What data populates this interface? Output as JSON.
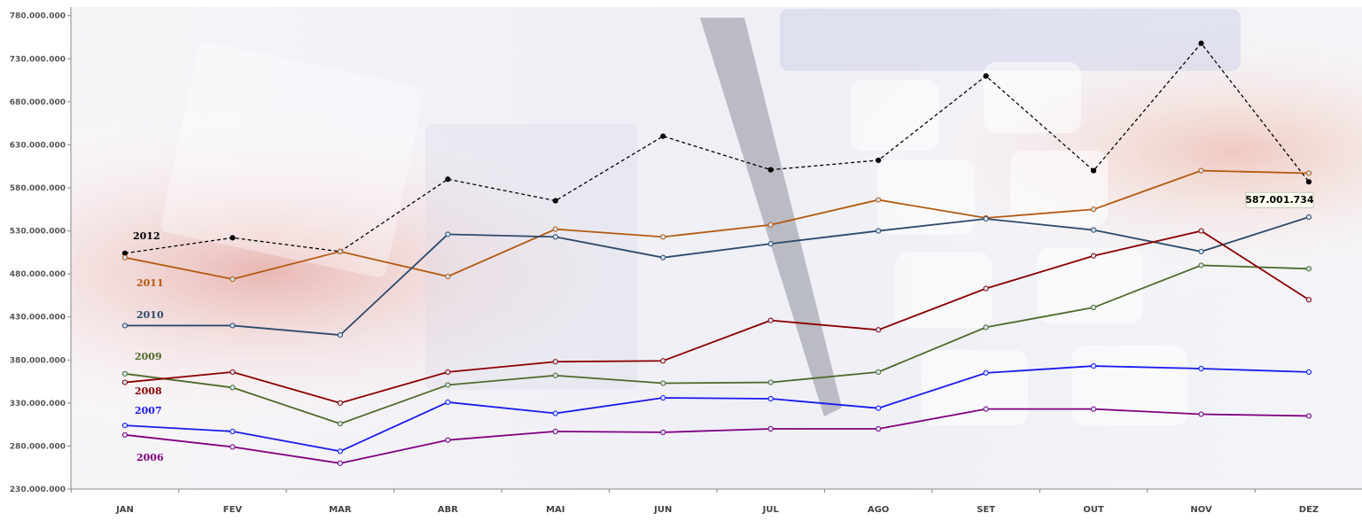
{
  "chart_data": {
    "type": "line",
    "title": "",
    "xlabel": "",
    "ylabel": "",
    "categories": [
      "JAN",
      "FEV",
      "MAR",
      "ABR",
      "MAI",
      "JUN",
      "JUL",
      "AGO",
      "SET",
      "OUT",
      "NOV",
      "DEZ"
    ],
    "yticks": [
      "230.000.000",
      "280.000.000",
      "330.000.000",
      "380.000.000",
      "430.000.000",
      "480.000.000",
      "530.000.000",
      "580.000.000",
      "630.000.000",
      "680.000.000",
      "730.000.000",
      "780.000.000"
    ],
    "ylim": [
      230000000,
      790000000
    ],
    "grid": false,
    "series": [
      {
        "name": "2012",
        "color": "#000000",
        "dashed": true,
        "values": [
          504000000,
          522000000,
          506000000,
          590000000,
          565000000,
          640000000,
          601000000,
          612000000,
          710000000,
          600000000,
          748000000,
          587001734
        ]
      },
      {
        "name": "2011",
        "color": "#b35a10",
        "dashed": false,
        "values": [
          499000000,
          474000000,
          506000000,
          477000000,
          532000000,
          523000000,
          537000000,
          566000000,
          545000000,
          555000000,
          600000000,
          597000000
        ]
      },
      {
        "name": "2010",
        "color": "#2e4a6b",
        "dashed": false,
        "values": [
          420000000,
          420000000,
          409000000,
          526000000,
          523000000,
          499000000,
          515000000,
          530000000,
          544000000,
          531000000,
          506000000,
          546000000
        ]
      },
      {
        "name": "2009",
        "color": "#4f6a2a",
        "dashed": false,
        "values": [
          364000000,
          348000000,
          306000000,
          351000000,
          362000000,
          353000000,
          354000000,
          366000000,
          418000000,
          441000000,
          490000000,
          486000000
        ]
      },
      {
        "name": "2008",
        "color": "#8b0000",
        "dashed": false,
        "values": [
          354000000,
          366000000,
          330000000,
          366000000,
          378000000,
          379000000,
          426000000,
          415000000,
          463000000,
          501000000,
          530000000,
          450000000
        ]
      },
      {
        "name": "2007",
        "color": "#1a1aee",
        "dashed": false,
        "values": [
          304000000,
          297000000,
          274000000,
          331000000,
          318000000,
          336000000,
          335000000,
          324000000,
          365000000,
          373000000,
          370000000,
          366000000
        ]
      },
      {
        "name": "2006",
        "color": "#800080",
        "dashed": false,
        "values": [
          293000000,
          279000000,
          260000000,
          287000000,
          297000000,
          296000000,
          300000000,
          300000000,
          323000000,
          323000000,
          317000000,
          315000000
        ]
      }
    ],
    "callout": {
      "text": "587.001.734",
      "series": "2012",
      "index": 11
    },
    "legend": "inline-left"
  }
}
